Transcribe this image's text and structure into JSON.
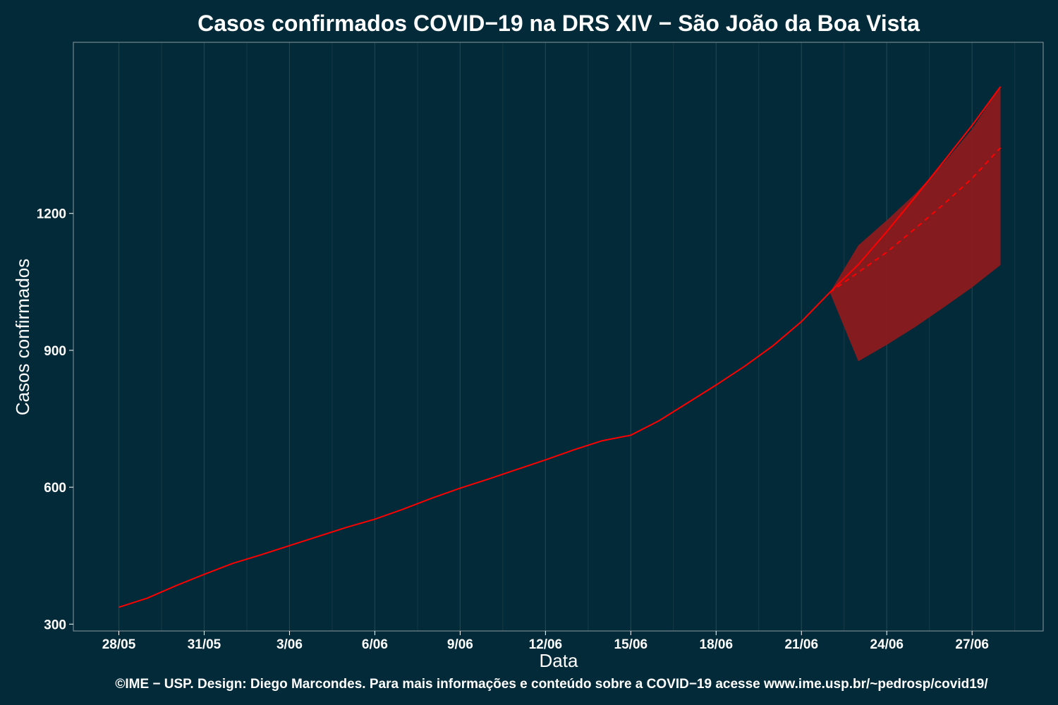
{
  "chart_data": {
    "type": "line",
    "title": "Casos confirmados COVID−19 na DRS XIV − São João da Boa Vista",
    "xlabel": "Data",
    "ylabel": "Casos confirmados",
    "x_tick_labels": [
      "28/05",
      "31/05",
      "3/06",
      "6/06",
      "9/06",
      "12/06",
      "15/06",
      "18/06",
      "21/06",
      "24/06",
      "27/06"
    ],
    "x_tick_days": [
      0,
      3,
      6,
      9,
      12,
      15,
      18,
      21,
      24,
      27,
      30
    ],
    "xlim_days": [
      -1.6,
      32.5
    ],
    "y_ticks": [
      300,
      600,
      900,
      1200
    ],
    "ylim": [
      285,
      1575
    ],
    "grid": true,
    "series": [
      {
        "style": "solid",
        "color": "#ff0000",
        "x_days": [
          0,
          1,
          2,
          3,
          4,
          5,
          6,
          7,
          8,
          9,
          10,
          11,
          12,
          13,
          14,
          15,
          16,
          17,
          18,
          19,
          20,
          21,
          22,
          23,
          24,
          25,
          26,
          27,
          28,
          29,
          30,
          31
        ],
        "values": [
          337,
          357,
          384,
          409,
          433,
          452,
          472,
          492,
          512,
          530,
          552,
          576,
          598,
          618,
          639,
          660,
          682,
          702,
          714,
          746,
          785,
          824,
          865,
          910,
          963,
          1027,
          1088,
          1160,
          1236,
          1314,
          1393,
          1478
        ]
      },
      {
        "style": "dashed",
        "color": "#ff0000",
        "x_days": [
          25,
          26,
          27,
          28,
          29,
          30,
          31
        ],
        "values": [
          1027,
          1071,
          1115,
          1167,
          1220,
          1277,
          1344
        ]
      }
    ],
    "band": {
      "color": "#8b1a1e",
      "x_days": [
        25,
        26,
        27,
        28,
        29,
        30,
        31
      ],
      "upper": [
        1027,
        1130,
        1185,
        1243,
        1310,
        1385,
        1478
      ],
      "lower": [
        1027,
        876,
        912,
        951,
        994,
        1038,
        1087
      ]
    }
  },
  "footer": "©IME − USP. Design: Diego Marcondes. Para mais informações e conteúdo sobre a COVID−19 acesse www.ime.usp.br/~pedrosp/covid19/"
}
